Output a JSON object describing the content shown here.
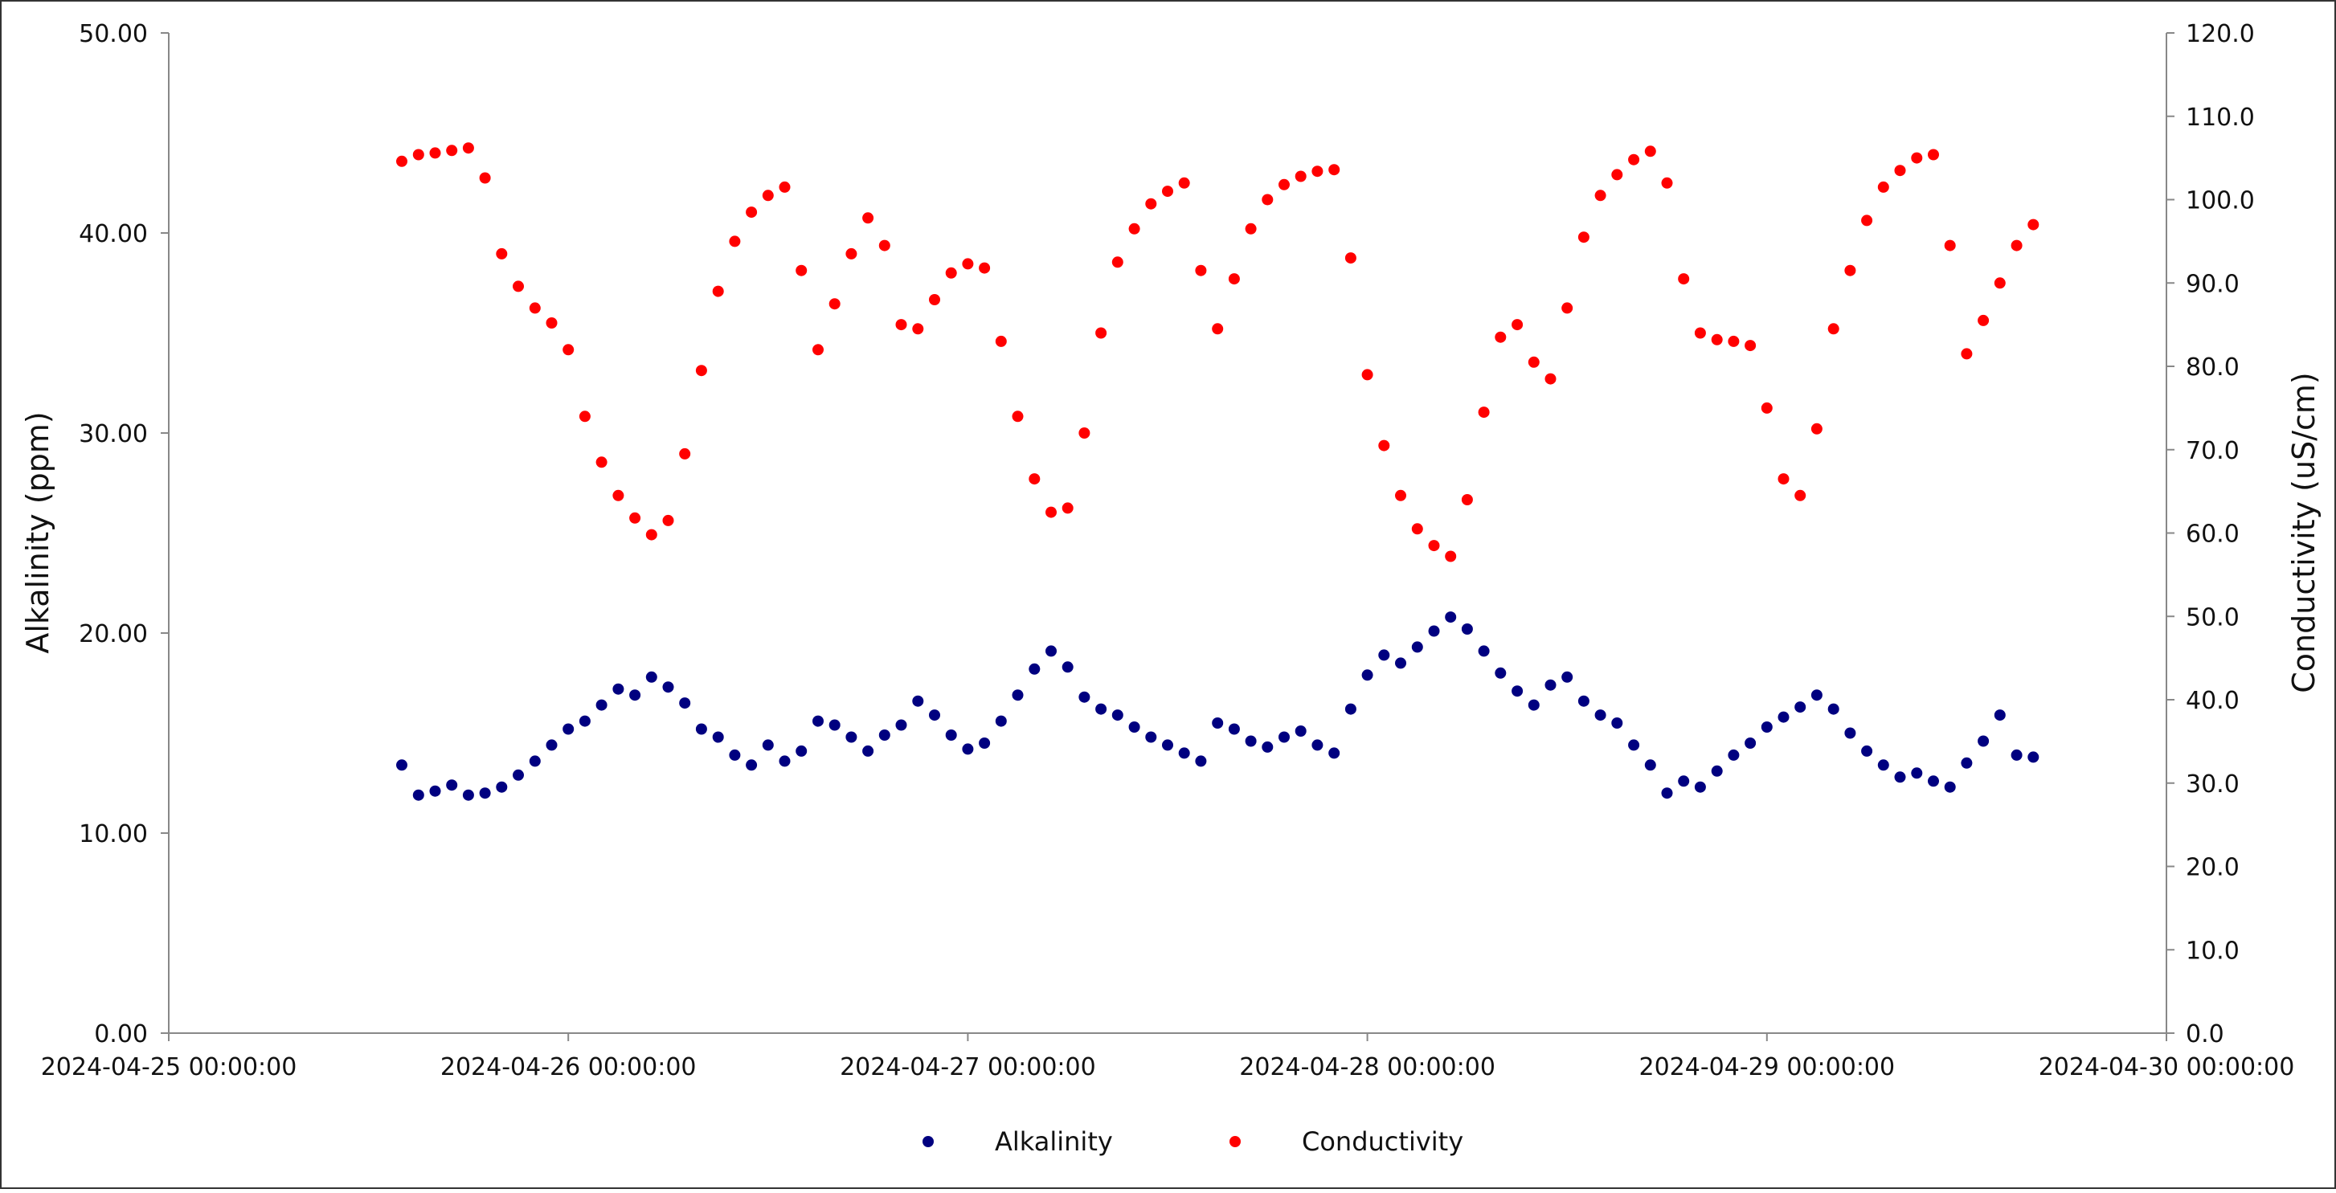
{
  "chart_data": {
    "type": "scatter",
    "title": "",
    "xlabel": "",
    "ylabel_left": "Alkalinity (ppm)",
    "ylabel_right": "Conductivity (uS/cm)",
    "x_range": [
      "2024-04-25 00:00:00",
      "2024-04-30 00:00:00"
    ],
    "x_ticks": [
      "2024-04-25 00:00:00",
      "2024-04-26 00:00:00",
      "2024-04-27 00:00:00",
      "2024-04-28 00:00:00",
      "2024-04-29 00:00:00",
      "2024-04-30 00:00:00"
    ],
    "ylim_left": [
      0,
      50
    ],
    "y_ticks_left": [
      "0.00",
      "10.00",
      "20.00",
      "30.00",
      "40.00",
      "50.00"
    ],
    "ylim_right": [
      0,
      120
    ],
    "y_ticks_right": [
      "0.0",
      "10.0",
      "20.0",
      "30.0",
      "40.0",
      "50.0",
      "60.0",
      "70.0",
      "80.0",
      "90.0",
      "100.0",
      "110.0",
      "120.0"
    ],
    "grid": false,
    "legend_position": "bottom-center",
    "series": [
      {
        "name": "Alkalinity",
        "axis": "left",
        "color": "#000080",
        "points": [
          [
            "2024-04-25 14:00",
            13.4
          ],
          [
            "2024-04-25 15:00",
            11.9
          ],
          [
            "2024-04-25 16:00",
            12.1
          ],
          [
            "2024-04-25 17:00",
            12.4
          ],
          [
            "2024-04-25 18:00",
            11.9
          ],
          [
            "2024-04-25 19:00",
            12.0
          ],
          [
            "2024-04-25 20:00",
            12.3
          ],
          [
            "2024-04-25 21:00",
            12.9
          ],
          [
            "2024-04-25 22:00",
            13.6
          ],
          [
            "2024-04-25 23:00",
            14.4
          ],
          [
            "2024-04-26 00:00",
            15.2
          ],
          [
            "2024-04-26 01:00",
            15.6
          ],
          [
            "2024-04-26 02:00",
            16.4
          ],
          [
            "2024-04-26 03:00",
            17.2
          ],
          [
            "2024-04-26 04:00",
            16.9
          ],
          [
            "2024-04-26 05:00",
            17.8
          ],
          [
            "2024-04-26 06:00",
            17.3
          ],
          [
            "2024-04-26 07:00",
            16.5
          ],
          [
            "2024-04-26 08:00",
            15.2
          ],
          [
            "2024-04-26 09:00",
            14.8
          ],
          [
            "2024-04-26 10:00",
            13.9
          ],
          [
            "2024-04-26 11:00",
            13.4
          ],
          [
            "2024-04-26 12:00",
            14.4
          ],
          [
            "2024-04-26 13:00",
            13.6
          ],
          [
            "2024-04-26 14:00",
            14.1
          ],
          [
            "2024-04-26 15:00",
            15.6
          ],
          [
            "2024-04-26 16:00",
            15.4
          ],
          [
            "2024-04-26 17:00",
            14.8
          ],
          [
            "2024-04-26 18:00",
            14.1
          ],
          [
            "2024-04-26 19:00",
            14.9
          ],
          [
            "2024-04-26 20:00",
            15.4
          ],
          [
            "2024-04-26 21:00",
            16.6
          ],
          [
            "2024-04-26 22:00",
            15.9
          ],
          [
            "2024-04-26 23:00",
            14.9
          ],
          [
            "2024-04-27 00:00",
            14.2
          ],
          [
            "2024-04-27 01:00",
            14.5
          ],
          [
            "2024-04-27 02:00",
            15.6
          ],
          [
            "2024-04-27 03:00",
            16.9
          ],
          [
            "2024-04-27 04:00",
            18.2
          ],
          [
            "2024-04-27 05:00",
            19.1
          ],
          [
            "2024-04-27 06:00",
            18.3
          ],
          [
            "2024-04-27 07:00",
            16.8
          ],
          [
            "2024-04-27 08:00",
            16.2
          ],
          [
            "2024-04-27 09:00",
            15.9
          ],
          [
            "2024-04-27 10:00",
            15.3
          ],
          [
            "2024-04-27 11:00",
            14.8
          ],
          [
            "2024-04-27 12:00",
            14.4
          ],
          [
            "2024-04-27 13:00",
            14.0
          ],
          [
            "2024-04-27 14:00",
            13.6
          ],
          [
            "2024-04-27 15:00",
            15.5
          ],
          [
            "2024-04-27 16:00",
            15.2
          ],
          [
            "2024-04-27 17:00",
            14.6
          ],
          [
            "2024-04-27 18:00",
            14.3
          ],
          [
            "2024-04-27 19:00",
            14.8
          ],
          [
            "2024-04-27 20:00",
            15.1
          ],
          [
            "2024-04-27 21:00",
            14.4
          ],
          [
            "2024-04-27 22:00",
            14.0
          ],
          [
            "2024-04-27 23:00",
            16.2
          ],
          [
            "2024-04-28 00:00",
            17.9
          ],
          [
            "2024-04-28 01:00",
            18.9
          ],
          [
            "2024-04-28 02:00",
            18.5
          ],
          [
            "2024-04-28 03:00",
            19.3
          ],
          [
            "2024-04-28 04:00",
            20.1
          ],
          [
            "2024-04-28 05:00",
            20.8
          ],
          [
            "2024-04-28 06:00",
            20.2
          ],
          [
            "2024-04-28 07:00",
            19.1
          ],
          [
            "2024-04-28 08:00",
            18.0
          ],
          [
            "2024-04-28 09:00",
            17.1
          ],
          [
            "2024-04-28 10:00",
            16.4
          ],
          [
            "2024-04-28 11:00",
            17.4
          ],
          [
            "2024-04-28 12:00",
            17.8
          ],
          [
            "2024-04-28 13:00",
            16.6
          ],
          [
            "2024-04-28 14:00",
            15.9
          ],
          [
            "2024-04-28 15:00",
            15.5
          ],
          [
            "2024-04-28 16:00",
            14.4
          ],
          [
            "2024-04-28 17:00",
            13.4
          ],
          [
            "2024-04-28 18:00",
            12.0
          ],
          [
            "2024-04-28 19:00",
            12.6
          ],
          [
            "2024-04-28 20:00",
            12.3
          ],
          [
            "2024-04-28 21:00",
            13.1
          ],
          [
            "2024-04-28 22:00",
            13.9
          ],
          [
            "2024-04-28 23:00",
            14.5
          ],
          [
            "2024-04-29 00:00",
            15.3
          ],
          [
            "2024-04-29 01:00",
            15.8
          ],
          [
            "2024-04-29 02:00",
            16.3
          ],
          [
            "2024-04-29 03:00",
            16.9
          ],
          [
            "2024-04-29 04:00",
            16.2
          ],
          [
            "2024-04-29 05:00",
            15.0
          ],
          [
            "2024-04-29 06:00",
            14.1
          ],
          [
            "2024-04-29 07:00",
            13.4
          ],
          [
            "2024-04-29 08:00",
            12.8
          ],
          [
            "2024-04-29 09:00",
            13.0
          ],
          [
            "2024-04-29 10:00",
            12.6
          ],
          [
            "2024-04-29 11:00",
            12.3
          ],
          [
            "2024-04-29 12:00",
            13.5
          ],
          [
            "2024-04-29 13:00",
            14.6
          ],
          [
            "2024-04-29 14:00",
            15.9
          ],
          [
            "2024-04-29 15:00",
            13.9
          ],
          [
            "2024-04-29 16:00",
            13.8
          ]
        ]
      },
      {
        "name": "Conductivity",
        "axis": "right",
        "color": "#ff0000",
        "points": [
          [
            "2024-04-25 14:00",
            104.6
          ],
          [
            "2024-04-25 15:00",
            105.4
          ],
          [
            "2024-04-25 16:00",
            105.6
          ],
          [
            "2024-04-25 17:00",
            105.9
          ],
          [
            "2024-04-25 18:00",
            106.2
          ],
          [
            "2024-04-25 19:00",
            102.6
          ],
          [
            "2024-04-25 20:00",
            93.5
          ],
          [
            "2024-04-25 21:00",
            89.6
          ],
          [
            "2024-04-25 22:00",
            87.0
          ],
          [
            "2024-04-25 23:00",
            85.2
          ],
          [
            "2024-04-26 00:00",
            82.0
          ],
          [
            "2024-04-26 01:00",
            74.0
          ],
          [
            "2024-04-26 02:00",
            68.5
          ],
          [
            "2024-04-26 03:00",
            64.5
          ],
          [
            "2024-04-26 04:00",
            61.8
          ],
          [
            "2024-04-26 05:00",
            59.8
          ],
          [
            "2024-04-26 06:00",
            61.5
          ],
          [
            "2024-04-26 07:00",
            69.5
          ],
          [
            "2024-04-26 08:00",
            79.5
          ],
          [
            "2024-04-26 09:00",
            89.0
          ],
          [
            "2024-04-26 10:00",
            95.0
          ],
          [
            "2024-04-26 11:00",
            98.5
          ],
          [
            "2024-04-26 12:00",
            100.5
          ],
          [
            "2024-04-26 13:00",
            101.5
          ],
          [
            "2024-04-26 14:00",
            91.5
          ],
          [
            "2024-04-26 15:00",
            82.0
          ],
          [
            "2024-04-26 16:00",
            87.5
          ],
          [
            "2024-04-26 17:00",
            93.5
          ],
          [
            "2024-04-26 18:00",
            97.8
          ],
          [
            "2024-04-26 19:00",
            94.5
          ],
          [
            "2024-04-26 20:00",
            85.0
          ],
          [
            "2024-04-26 21:00",
            84.5
          ],
          [
            "2024-04-26 22:00",
            88.0
          ],
          [
            "2024-04-26 23:00",
            91.2
          ],
          [
            "2024-04-27 00:00",
            92.3
          ],
          [
            "2024-04-27 01:00",
            91.8
          ],
          [
            "2024-04-27 02:00",
            83.0
          ],
          [
            "2024-04-27 03:00",
            74.0
          ],
          [
            "2024-04-27 04:00",
            66.5
          ],
          [
            "2024-04-27 05:00",
            62.5
          ],
          [
            "2024-04-27 06:00",
            63.0
          ],
          [
            "2024-04-27 07:00",
            72.0
          ],
          [
            "2024-04-27 08:00",
            84.0
          ],
          [
            "2024-04-27 09:00",
            92.5
          ],
          [
            "2024-04-27 10:00",
            96.5
          ],
          [
            "2024-04-27 11:00",
            99.5
          ],
          [
            "2024-04-27 12:00",
            101.0
          ],
          [
            "2024-04-27 13:00",
            102.0
          ],
          [
            "2024-04-27 14:00",
            91.5
          ],
          [
            "2024-04-27 15:00",
            84.5
          ],
          [
            "2024-04-27 16:00",
            90.5
          ],
          [
            "2024-04-27 17:00",
            96.5
          ],
          [
            "2024-04-27 18:00",
            100.0
          ],
          [
            "2024-04-27 19:00",
            101.8
          ],
          [
            "2024-04-27 20:00",
            102.8
          ],
          [
            "2024-04-27 21:00",
            103.4
          ],
          [
            "2024-04-27 22:00",
            103.6
          ],
          [
            "2024-04-27 23:00",
            93.0
          ],
          [
            "2024-04-28 00:00",
            79.0
          ],
          [
            "2024-04-28 01:00",
            70.5
          ],
          [
            "2024-04-28 02:00",
            64.5
          ],
          [
            "2024-04-28 03:00",
            60.5
          ],
          [
            "2024-04-28 04:00",
            58.5
          ],
          [
            "2024-04-28 05:00",
            57.2
          ],
          [
            "2024-04-28 06:00",
            64.0
          ],
          [
            "2024-04-28 07:00",
            74.5
          ],
          [
            "2024-04-28 08:00",
            83.5
          ],
          [
            "2024-04-28 09:00",
            85.0
          ],
          [
            "2024-04-28 10:00",
            80.5
          ],
          [
            "2024-04-28 11:00",
            78.5
          ],
          [
            "2024-04-28 12:00",
            87.0
          ],
          [
            "2024-04-28 13:00",
            95.5
          ],
          [
            "2024-04-28 14:00",
            100.5
          ],
          [
            "2024-04-28 15:00",
            103.0
          ],
          [
            "2024-04-28 16:00",
            104.8
          ],
          [
            "2024-04-28 17:00",
            105.8
          ],
          [
            "2024-04-28 18:00",
            102.0
          ],
          [
            "2024-04-28 19:00",
            90.5
          ],
          [
            "2024-04-28 20:00",
            84.0
          ],
          [
            "2024-04-28 21:00",
            83.2
          ],
          [
            "2024-04-28 22:00",
            83.0
          ],
          [
            "2024-04-28 23:00",
            82.5
          ],
          [
            "2024-04-29 00:00",
            75.0
          ],
          [
            "2024-04-29 01:00",
            66.5
          ],
          [
            "2024-04-29 02:00",
            64.5
          ],
          [
            "2024-04-29 03:00",
            72.5
          ],
          [
            "2024-04-29 04:00",
            84.5
          ],
          [
            "2024-04-29 05:00",
            91.5
          ],
          [
            "2024-04-29 06:00",
            97.5
          ],
          [
            "2024-04-29 07:00",
            101.5
          ],
          [
            "2024-04-29 08:00",
            103.5
          ],
          [
            "2024-04-29 09:00",
            105.0
          ],
          [
            "2024-04-29 10:00",
            105.4
          ],
          [
            "2024-04-29 11:00",
            94.5
          ],
          [
            "2024-04-29 12:00",
            81.5
          ],
          [
            "2024-04-29 13:00",
            85.5
          ],
          [
            "2024-04-29 14:00",
            90.0
          ],
          [
            "2024-04-29 15:00",
            94.5
          ],
          [
            "2024-04-29 16:00",
            97.0
          ]
        ]
      }
    ]
  }
}
